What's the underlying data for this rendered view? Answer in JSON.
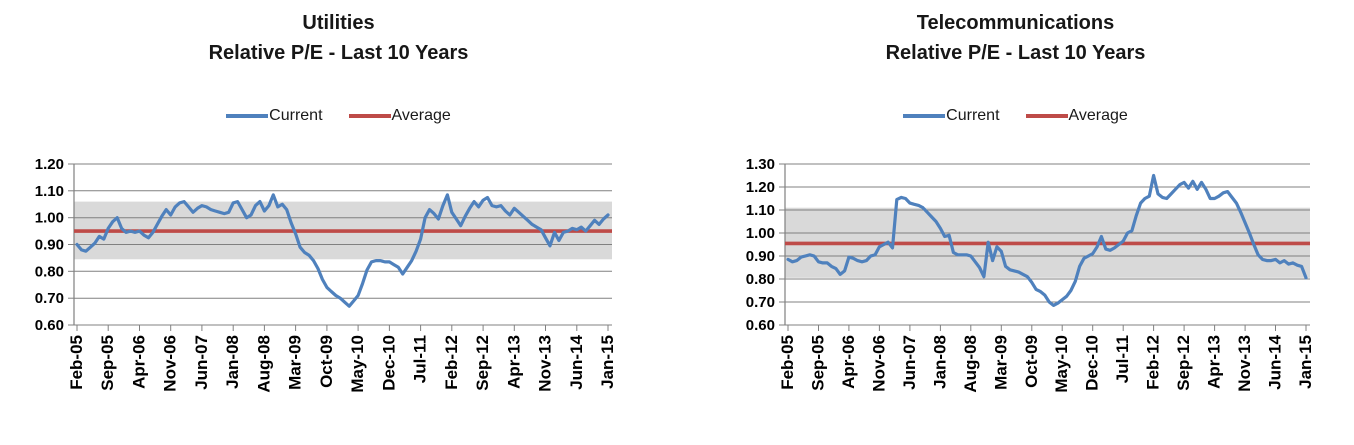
{
  "page": {
    "background": "#FFFFFF"
  },
  "charts": [
    {
      "id": "utilities",
      "title_line1": "Utilities",
      "title_line2": "Relative P/E - Last 10 Years",
      "legend": [
        {
          "label": "Current",
          "color": "#4F81BD"
        },
        {
          "label": "Average",
          "color": "#BE4B48"
        }
      ],
      "chart_data": {
        "type": "line",
        "title": "Utilities Relative P/E - Last 10 Years",
        "legend_position": "top",
        "grid": true,
        "x_start": "Feb-05",
        "x_end": "Jan-15",
        "x_tick_every_months": 7,
        "x_tick_labels": [
          "Feb-05",
          "Sep-05",
          "Apr-06",
          "Nov-06",
          "Jun-07",
          "Jan-08",
          "Aug-08",
          "Mar-09",
          "Oct-09",
          "May-10",
          "Dec-10",
          "Jul-11",
          "Feb-12",
          "Sep-12",
          "Apr-13",
          "Nov-13",
          "Jun-14",
          "Jan-15"
        ],
        "ylim": [
          0.6,
          1.2
        ],
        "y_tick_labels_top_down": [
          "1.20",
          "1.10",
          "1.00",
          "0.90",
          "0.80",
          "0.70",
          "0.60"
        ],
        "band": {
          "min": 0.845,
          "max": 1.06,
          "color": "#D9D9D9"
        },
        "series": [
          {
            "name": "Current",
            "kind": "monthly_values",
            "color": "#4F81BD",
            "values": [
              0.9,
              0.88,
              0.875,
              0.89,
              0.905,
              0.93,
              0.92,
              0.96,
              0.985,
              1.0,
              0.96,
              0.945,
              0.95,
              0.945,
              0.95,
              0.935,
              0.925,
              0.945,
              0.975,
              1.005,
              1.03,
              1.01,
              1.04,
              1.055,
              1.06,
              1.04,
              1.02,
              1.035,
              1.045,
              1.04,
              1.03,
              1.025,
              1.02,
              1.015,
              1.02,
              1.055,
              1.06,
              1.03,
              1.0,
              1.01,
              1.045,
              1.06,
              1.025,
              1.045,
              1.085,
              1.04,
              1.05,
              1.03,
              0.98,
              0.94,
              0.89,
              0.87,
              0.86,
              0.84,
              0.81,
              0.77,
              0.74,
              0.725,
              0.71,
              0.7,
              0.685,
              0.67,
              0.69,
              0.71,
              0.755,
              0.805,
              0.835,
              0.84,
              0.84,
              0.835,
              0.835,
              0.825,
              0.815,
              0.79,
              0.815,
              0.84,
              0.875,
              0.92,
              1.0,
              1.03,
              1.015,
              0.995,
              1.045,
              1.085,
              1.02,
              0.995,
              0.97,
              1.005,
              1.035,
              1.06,
              1.04,
              1.065,
              1.075,
              1.045,
              1.04,
              1.045,
              1.025,
              1.01,
              1.035,
              1.02,
              1.005,
              0.99,
              0.975,
              0.965,
              0.955,
              0.925,
              0.895,
              0.945,
              0.915,
              0.945,
              0.95,
              0.96,
              0.955,
              0.965,
              0.95,
              0.97,
              0.99,
              0.975,
              0.995,
              1.01
            ]
          },
          {
            "name": "Average",
            "kind": "constant",
            "color": "#BE4B48",
            "value": 0.95
          }
        ]
      }
    },
    {
      "id": "telecommunications",
      "title_line1": "Telecommunications",
      "title_line2": "Relative P/E - Last 10 Years",
      "legend": [
        {
          "label": "Current",
          "color": "#4F81BD"
        },
        {
          "label": "Average",
          "color": "#BE4B48"
        }
      ],
      "chart_data": {
        "type": "line",
        "title": "Telecommunications Relative P/E - Last 10 Years",
        "legend_position": "top",
        "grid": true,
        "x_start": "Feb-05",
        "x_end": "Jan-15",
        "x_tick_every_months": 7,
        "x_tick_labels": [
          "Feb-05",
          "Sep-05",
          "Apr-06",
          "Nov-06",
          "Jun-07",
          "Jan-08",
          "Aug-08",
          "Mar-09",
          "Oct-09",
          "May-10",
          "Dec-10",
          "Jul-11",
          "Feb-12",
          "Sep-12",
          "Apr-13",
          "Nov-13",
          "Jun-14",
          "Jan-15"
        ],
        "ylim": [
          0.6,
          1.3
        ],
        "y_tick_labels_top_down": [
          "1.30",
          "1.20",
          "1.10",
          "1.00",
          "0.90",
          "0.80",
          "0.70",
          "0.60"
        ],
        "band": {
          "min": 0.805,
          "max": 1.11,
          "color": "#D9D9D9"
        },
        "series": [
          {
            "name": "Current",
            "kind": "monthly_values",
            "color": "#4F81BD",
            "values": [
              0.885,
              0.875,
              0.88,
              0.895,
              0.9,
              0.905,
              0.9,
              0.875,
              0.87,
              0.87,
              0.855,
              0.845,
              0.82,
              0.835,
              0.895,
              0.89,
              0.88,
              0.875,
              0.88,
              0.9,
              0.905,
              0.94,
              0.95,
              0.96,
              0.935,
              1.145,
              1.155,
              1.15,
              1.13,
              1.125,
              1.12,
              1.11,
              1.09,
              1.07,
              1.05,
              1.02,
              0.985,
              0.99,
              0.915,
              0.905,
              0.905,
              0.905,
              0.9,
              0.875,
              0.85,
              0.81,
              0.96,
              0.88,
              0.94,
              0.92,
              0.855,
              0.84,
              0.835,
              0.83,
              0.82,
              0.81,
              0.785,
              0.755,
              0.745,
              0.73,
              0.7,
              0.685,
              0.695,
              0.71,
              0.725,
              0.75,
              0.79,
              0.855,
              0.89,
              0.9,
              0.91,
              0.94,
              0.985,
              0.93,
              0.925,
              0.935,
              0.95,
              0.965,
              1.0,
              1.01,
              1.075,
              1.13,
              1.15,
              1.16,
              1.25,
              1.17,
              1.155,
              1.15,
              1.17,
              1.19,
              1.21,
              1.22,
              1.195,
              1.225,
              1.19,
              1.22,
              1.19,
              1.15,
              1.15,
              1.16,
              1.175,
              1.18,
              1.155,
              1.13,
              1.09,
              1.045,
              1.0,
              0.95,
              0.905,
              0.885,
              0.88,
              0.88,
              0.885,
              0.87,
              0.88,
              0.865,
              0.87,
              0.86,
              0.855,
              0.805
            ]
          },
          {
            "name": "Average",
            "kind": "constant",
            "color": "#BE4B48",
            "value": 0.955
          }
        ]
      }
    }
  ]
}
